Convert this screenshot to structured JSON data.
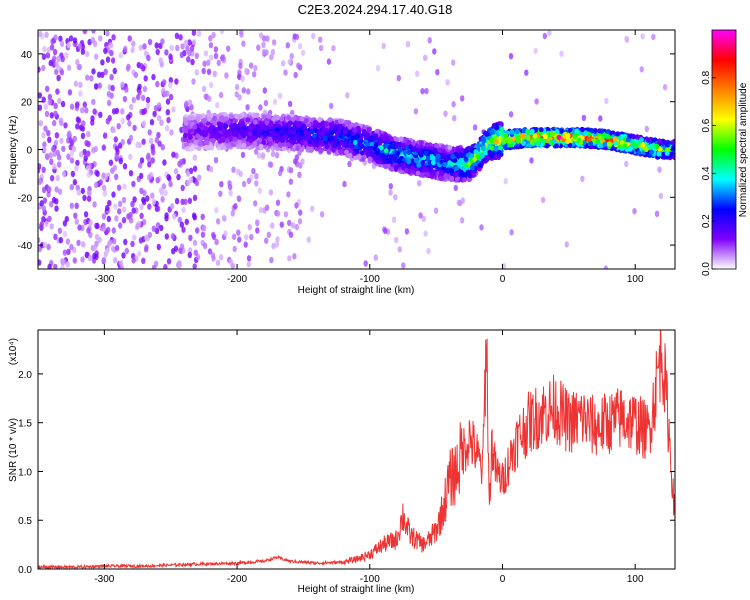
{
  "title": "C2E3.2024.294.17.40.G18",
  "chart_data": [
    {
      "type": "heatmap",
      "description_of_content": "spectrogram: frequency vs height of straight line",
      "xlabel": "Height of straight line (km)",
      "ylabel": "Frequency (Hz)",
      "xlim": [
        -350,
        130
      ],
      "ylim": [
        -50,
        50
      ],
      "x_ticks": [
        -300,
        -200,
        -100,
        0,
        100
      ],
      "y_ticks": [
        -40,
        -20,
        0,
        20,
        40
      ],
      "colorbar": {
        "label": "Normalized spectral amplitude",
        "range": [
          0,
          1
        ],
        "ticks": [
          0.0,
          0.2,
          0.4,
          0.6,
          0.8
        ],
        "colormap": [
          "#ffffff",
          "#7f00ff",
          "#0000ff",
          "#00ffff",
          "#00ff00",
          "#ffff00",
          "#ff7f00",
          "#ff0000",
          "#ff00ff"
        ]
      },
      "ridge": {
        "x": [
          -240,
          -200,
          -160,
          -120,
          -100,
          -80,
          -60,
          -40,
          -25,
          -10,
          0,
          20,
          40,
          60,
          80,
          100,
          120,
          130
        ],
        "frequency": [
          7,
          8,
          7,
          5,
          2,
          -2,
          -4,
          -6,
          -6,
          3,
          4,
          5,
          5,
          5,
          4,
          2,
          0,
          0
        ],
        "amplitude": [
          0.15,
          0.2,
          0.25,
          0.3,
          0.35,
          0.4,
          0.4,
          0.35,
          0.5,
          0.6,
          0.75,
          0.8,
          0.85,
          0.8,
          0.75,
          0.7,
          0.6,
          0.4
        ]
      }
    },
    {
      "type": "line",
      "xlabel": "Height of straight line (km)",
      "ylabel": "SNR (10 * v/v)",
      "y_multiplier": "(x10⁴)",
      "xlim": [
        -350,
        130
      ],
      "ylim": [
        0,
        2.45
      ],
      "x_ticks": [
        -300,
        -200,
        -100,
        0,
        100
      ],
      "y_ticks": [
        0.0,
        0.5,
        1.0,
        1.5,
        2.0
      ],
      "color": "#ee3333",
      "series": [
        {
          "x": [
            -350,
            -320,
            -300,
            -270,
            -250,
            -230,
            -200,
            -180,
            -170,
            -160,
            -140,
            -120,
            -110,
            -100,
            -90,
            -80,
            -75,
            -70,
            -60,
            -55,
            -50,
            -45,
            -40,
            -35,
            -30,
            -25,
            -20,
            -15,
            -12,
            -10,
            -8,
            -5,
            0,
            10,
            20,
            30,
            40,
            50,
            60,
            70,
            80,
            90,
            100,
            110,
            115,
            120,
            125,
            130
          ],
          "values": [
            0.02,
            0.02,
            0.03,
            0.03,
            0.04,
            0.05,
            0.06,
            0.08,
            0.12,
            0.08,
            0.06,
            0.07,
            0.1,
            0.15,
            0.25,
            0.3,
            0.55,
            0.35,
            0.25,
            0.3,
            0.4,
            0.6,
            0.9,
            1.0,
            1.2,
            1.35,
            1.2,
            1.0,
            2.45,
            0.6,
            1.3,
            1.0,
            0.9,
            1.3,
            1.5,
            1.6,
            1.65,
            1.5,
            1.55,
            1.45,
            1.5,
            1.55,
            1.5,
            1.4,
            1.8,
            2.3,
            1.5,
            0.5
          ]
        }
      ]
    }
  ]
}
